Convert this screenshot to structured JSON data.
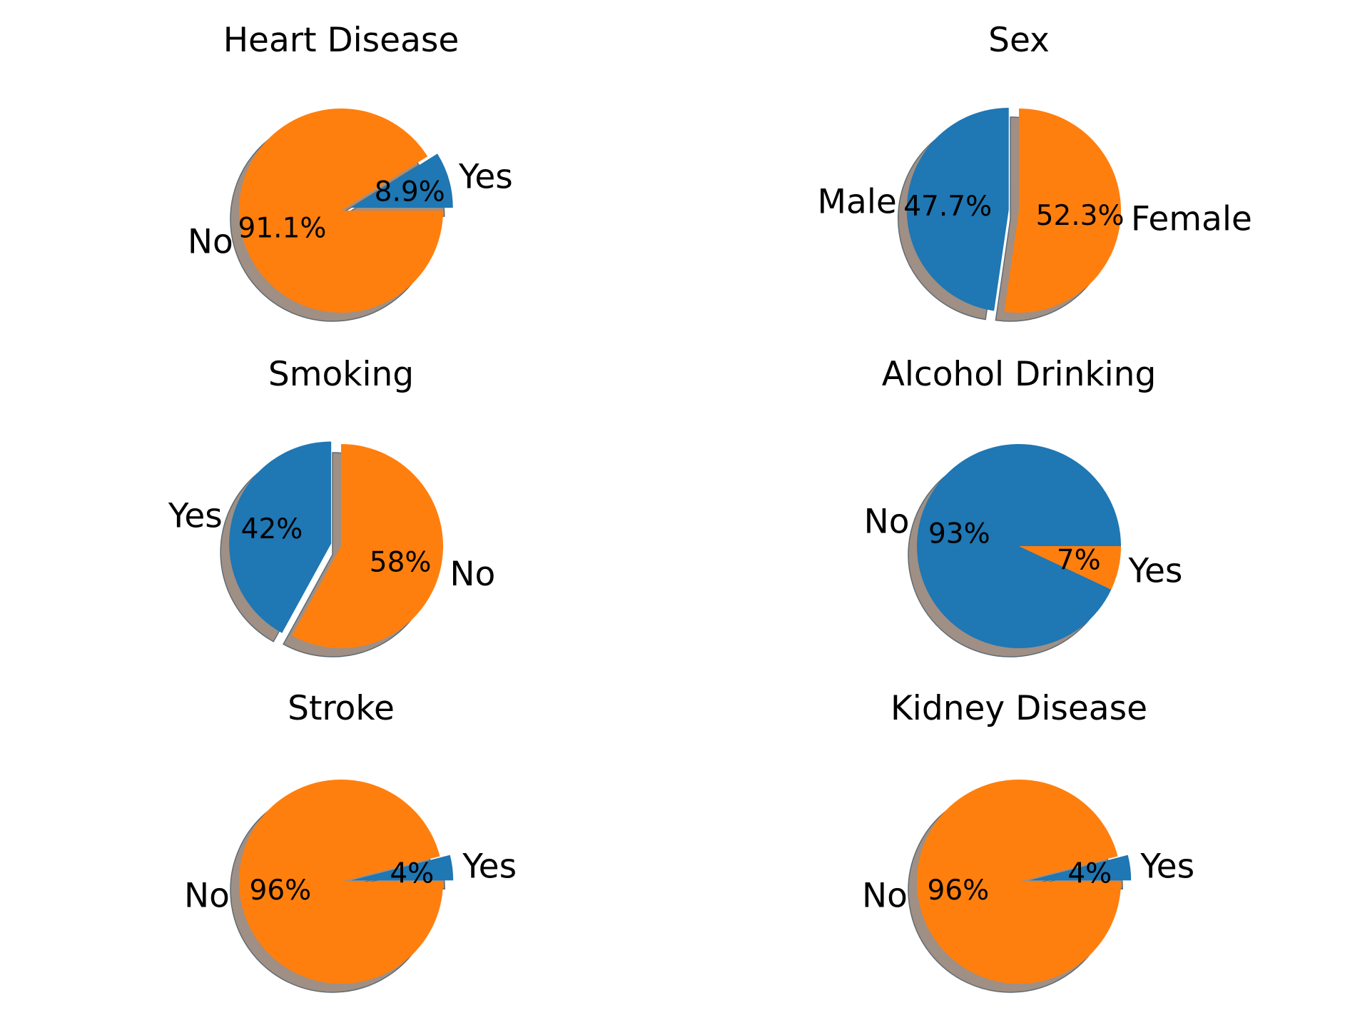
{
  "colors": {
    "blue": "#1f77b4",
    "orange": "#ff7f0e",
    "shadow": "#a08f84"
  },
  "chart_data": [
    {
      "type": "pie",
      "title": "Heart Disease",
      "labels": [
        "Yes",
        "No"
      ],
      "values": [
        8.9,
        91.1
      ],
      "pct_labels": [
        "8.9%",
        "91.1%"
      ],
      "colors": [
        "#1f77b4",
        "#ff7f0e"
      ],
      "explode": [
        0.1,
        0
      ],
      "shadow": true,
      "startangle": 0
    },
    {
      "type": "pie",
      "title": "Sex",
      "labels": [
        "Male",
        "Female"
      ],
      "values": [
        47.7,
        52.3
      ],
      "pct_labels": [
        "47.7%",
        "52.3%"
      ],
      "colors": [
        "#1f77b4",
        "#ff7f0e"
      ],
      "explode": [
        0.1,
        0
      ],
      "shadow": true,
      "startangle": 90
    },
    {
      "type": "pie",
      "title": "Smoking",
      "labels": [
        "Yes",
        "No"
      ],
      "values": [
        42,
        58
      ],
      "pct_labels": [
        "42%",
        "58%"
      ],
      "colors": [
        "#1f77b4",
        "#ff7f0e"
      ],
      "explode": [
        0.1,
        0
      ],
      "shadow": true,
      "startangle": 90
    },
    {
      "type": "pie",
      "title": "Alcohol Drinking",
      "labels": [
        "No",
        "Yes"
      ],
      "values": [
        93,
        7
      ],
      "pct_labels": [
        "93%",
        "7%"
      ],
      "colors": [
        "#1f77b4",
        "#ff7f0e"
      ],
      "explode": [
        0,
        0
      ],
      "shadow": true,
      "startangle": 0
    },
    {
      "type": "pie",
      "title": "Stroke",
      "labels": [
        "Yes",
        "No"
      ],
      "values": [
        4,
        96
      ],
      "pct_labels": [
        "4%",
        "96%"
      ],
      "colors": [
        "#1f77b4",
        "#ff7f0e"
      ],
      "explode": [
        0.1,
        0
      ],
      "shadow": true,
      "startangle": 0
    },
    {
      "type": "pie",
      "title": "Kidney Disease",
      "labels": [
        "Yes",
        "No"
      ],
      "values": [
        4,
        96
      ],
      "pct_labels": [
        "4%",
        "96%"
      ],
      "colors": [
        "#1f77b4",
        "#ff7f0e"
      ],
      "explode": [
        0.1,
        0
      ],
      "shadow": true,
      "startangle": 0
    }
  ]
}
